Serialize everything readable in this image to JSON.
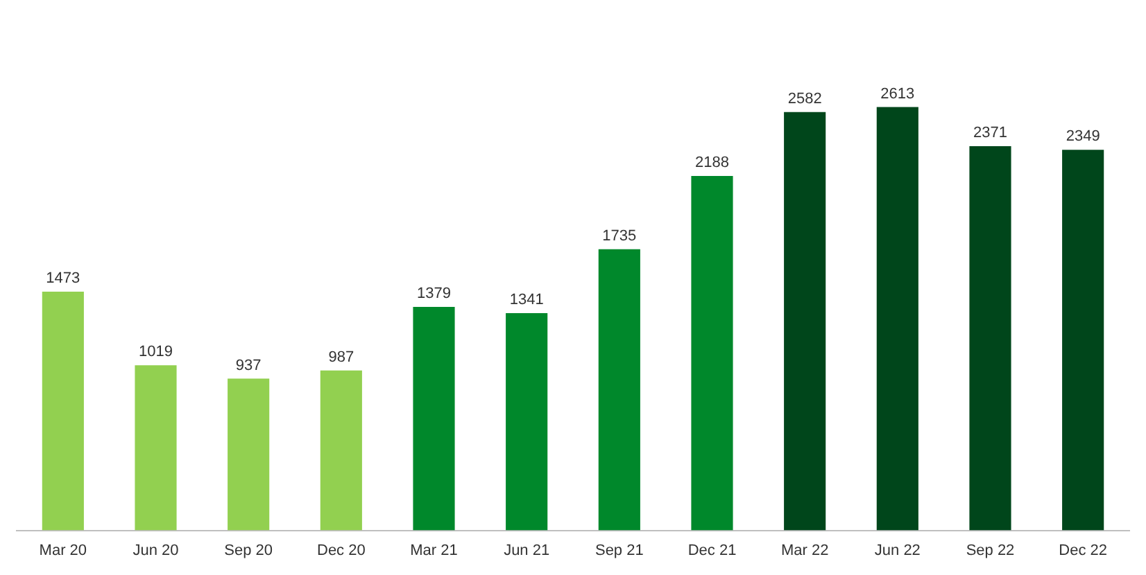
{
  "chart_data": {
    "type": "bar",
    "categories": [
      "Mar 20",
      "Jun 20",
      "Sep 20",
      "Dec 20",
      "Mar 21",
      "Jun 21",
      "Sep 21",
      "Dec 21",
      "Mar 22",
      "Jun 22",
      "Sep 22",
      "Dec 22"
    ],
    "values": [
      1473,
      1019,
      937,
      987,
      1379,
      1341,
      1735,
      2188,
      2582,
      2613,
      2371,
      2349
    ],
    "colors": [
      "#92d050",
      "#92d050",
      "#92d050",
      "#92d050",
      "#00882b",
      "#00882b",
      "#00882b",
      "#00882b",
      "#00461b",
      "#00461b",
      "#00461b",
      "#00461b"
    ],
    "data_labels": true,
    "grid": false,
    "legend": false,
    "tick_labels": "x"
  }
}
